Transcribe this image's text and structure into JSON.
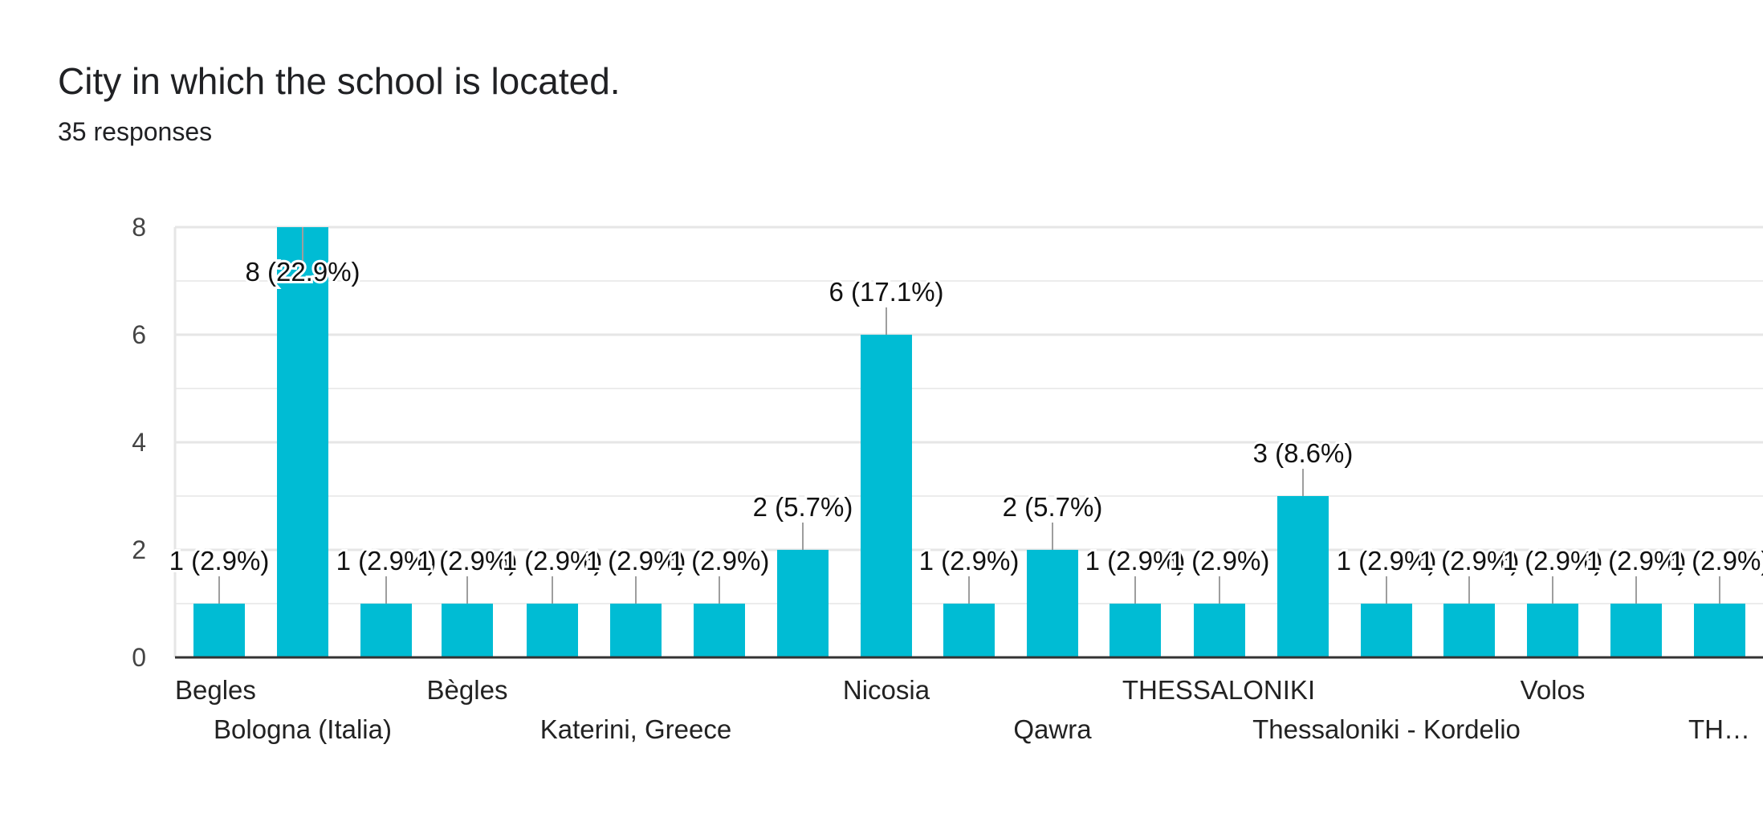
{
  "header": {
    "title": "City in which the school is located.",
    "subtitle": "35 responses"
  },
  "colors": {
    "bar": "#00bcd4",
    "gridline": "#e6e6e6",
    "axis": "#333333",
    "leader": "#9e9e9e"
  },
  "chart_data": {
    "type": "bar",
    "title": "City in which the school is located.",
    "subtitle": "35 responses",
    "xlabel": "",
    "ylabel": "",
    "ylim": [
      0,
      8
    ],
    "yticks": [
      0,
      2,
      4,
      6,
      8
    ],
    "grid": true,
    "categories": [
      "Begles",
      "Bologna (Italia)",
      "",
      "Bègles",
      "",
      "Katerini, Greece",
      "",
      "",
      "Nicosia",
      "",
      "Qawra",
      "THESSALONIKI",
      "",
      "",
      "Thessaloniki - Kordelio",
      "",
      "Volos",
      "",
      "TH…"
    ],
    "values": [
      1,
      8,
      1,
      1,
      1,
      1,
      1,
      2,
      6,
      1,
      2,
      1,
      1,
      3,
      1,
      1,
      1,
      1,
      1
    ],
    "data_labels": [
      "1 (2.9%)",
      "8 (22.9%)",
      "1 (2.9%)",
      "1 (2.9%)",
      "1 (2.9%)",
      "1 (2.9%)",
      "1 (2.9%)",
      "2 (5.7%)",
      "6 (17.1%)",
      "1 (2.9%)",
      "2 (5.7%)",
      "1 (2.9%)",
      "1 (2.9%)",
      "3 (8.6%)",
      "1 (2.9%)",
      "1 (2.9%)",
      "1 (2.9%)",
      "1 (2.9%)",
      "1 (2.9%)"
    ]
  }
}
